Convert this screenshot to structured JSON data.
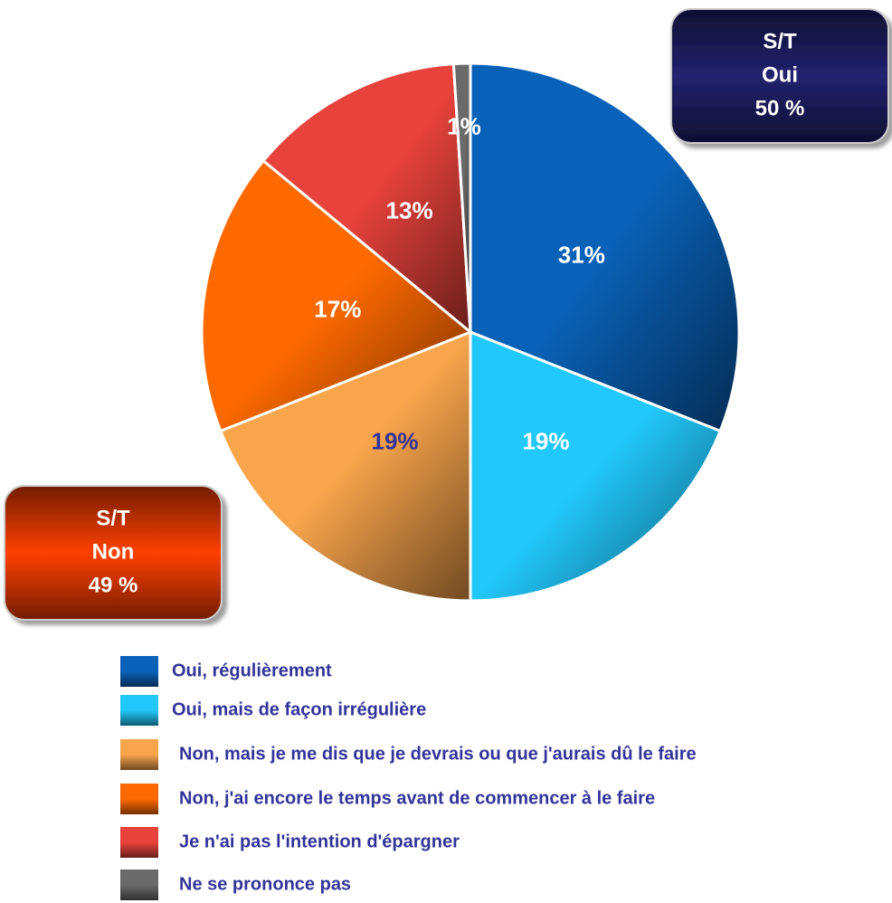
{
  "chart_data": {
    "type": "pie",
    "categories": [
      "Oui, régulièrement",
      "Oui, mais de façon irrégulière",
      "Non, mais je me dis que je devrais ou que j'aurais dû le faire",
      "Non, j'ai encore le temps avant de commencer à le faire",
      "Je n'ai pas l'intention d'épargner",
      "Ne se prononce pas"
    ],
    "values": [
      31,
      19,
      19,
      17,
      13,
      1
    ],
    "value_labels": [
      "31%",
      "19%",
      "19%",
      "17%",
      "13%",
      "1%"
    ],
    "colors": [
      "#0a62b8",
      "#22c8fb",
      "#f8a54c",
      "#ff6a00",
      "#e8423c",
      "#6a6a6a"
    ],
    "label_colors": [
      "#ffffff",
      "#ffffff",
      "#333399",
      "#ffffff",
      "#ffffff",
      "#ffffff"
    ],
    "annotations": [
      {
        "lines": [
          "S/T",
          "Oui",
          "50 %"
        ],
        "color": "#22226e"
      },
      {
        "lines": [
          "S/T",
          "Non",
          "49 %"
        ],
        "color": "#ff4000"
      }
    ]
  }
}
